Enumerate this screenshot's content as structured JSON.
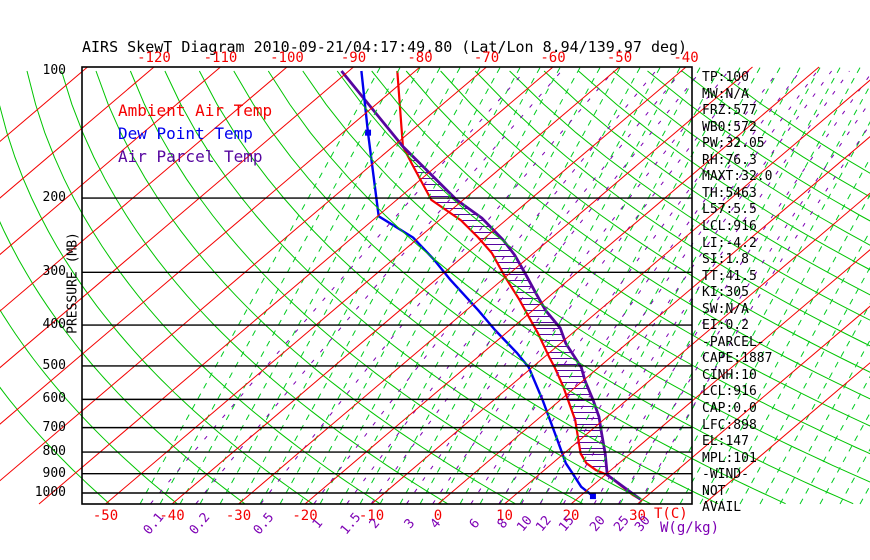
{
  "chart_data": {
    "type": "skewt",
    "title": "AIRS SkewT Diagram 2010-09-21/04:17:49.80 (Lat/Lon 8.94/139.97 deg)",
    "legend": [
      {
        "label": "Ambient Air Temp",
        "color": "#f40000"
      },
      {
        "label": "Dew Point Temp",
        "color": "#0000ee"
      },
      {
        "label": "Air Parcel Temp",
        "color": "#56069f"
      }
    ],
    "axes": {
      "pressure": {
        "label": "PRESSURE (MB)",
        "ticks": [
          100,
          200,
          300,
          400,
          500,
          600,
          700,
          800,
          900,
          1000
        ]
      },
      "temp_top": {
        "ticks": [
          -120,
          -110,
          -100,
          -90,
          -80,
          -70,
          -60,
          -50,
          -40
        ]
      },
      "temp_bottom": {
        "label": "T(C)",
        "ticks": [
          -50,
          -40,
          -30,
          -20,
          -10,
          0,
          10,
          20,
          30
        ]
      },
      "mixing_ratio": {
        "label": "W(g/kg)",
        "ticks": [
          0.1,
          0.2,
          0.5,
          1,
          1.5,
          2,
          3,
          4,
          6,
          8,
          10,
          12,
          15,
          20,
          25,
          30
        ]
      }
    },
    "grid": {
      "isotherm_step_c": 10,
      "isotherm_range_c": [
        -130,
        40
      ],
      "dry_adiabat_theta_k": {
        "min": 220,
        "max": 460,
        "step": 10
      }
    },
    "profiles": {
      "ambient_air_temp": [
        [
          100,
          -82.7
        ],
        [
          151,
          -68.5
        ],
        [
          167,
          -63.8
        ],
        [
          202,
          -54.8
        ],
        [
          226,
          -46.7
        ],
        [
          248,
          -41.1
        ],
        [
          270,
          -36.3
        ],
        [
          308,
          -30.0
        ],
        [
          349,
          -23.8
        ],
        [
          396,
          -17.8
        ],
        [
          418,
          -15.2
        ],
        [
          477,
          -9.2
        ],
        [
          504,
          -6.6
        ],
        [
          560,
          -1.9
        ],
        [
          672,
          5.8
        ],
        [
          806,
          12.5
        ],
        [
          850,
          15.1
        ],
        [
          883,
          17.8
        ],
        [
          906,
          20.3
        ],
        [
          1012,
          27.8
        ],
        [
          1035,
          29.6
        ]
      ],
      "dew_point_temp": [
        [
          100,
          -88.1
        ],
        [
          140,
          -76.2
        ],
        [
          221,
          -59.8
        ],
        [
          248,
          -50.9
        ],
        [
          280,
          -43.8
        ],
        [
          313,
          -37.7
        ],
        [
          369,
          -28.2
        ],
        [
          411,
          -22.2
        ],
        [
          466,
          -14.8
        ],
        [
          504,
          -10.5
        ],
        [
          603,
          -2.6
        ],
        [
          750,
          6.7
        ],
        [
          850,
          12.0
        ],
        [
          898,
          14.8
        ],
        [
          967,
          18.5
        ],
        [
          1017,
          21.9
        ]
      ],
      "air_parcel_temp": [
        [
          100,
          -91.1
        ],
        [
          151,
          -68.5
        ],
        [
          202,
          -51.0
        ],
        [
          223,
          -44.0
        ],
        [
          251,
          -37.0
        ],
        [
          273,
          -32.5
        ],
        [
          301,
          -27.8
        ],
        [
          336,
          -22.6
        ],
        [
          369,
          -18.1
        ],
        [
          407,
          -12.7
        ],
        [
          442,
          -9.2
        ],
        [
          504,
          -2.6
        ],
        [
          542,
          0.3
        ],
        [
          603,
          5.0
        ],
        [
          660,
          8.8
        ],
        [
          722,
          12.1
        ],
        [
          806,
          16.2
        ],
        [
          883,
          19.4
        ],
        [
          906,
          20.3
        ],
        [
          1035,
          29.6
        ]
      ]
    },
    "cape_hatch_between_mb": [
      151,
      891
    ],
    "dewpoint_markers_mb": [
      140,
      1017
    ],
    "stats": [
      "TP:100",
      "MW:N/A",
      "FRZ:577",
      "WB0:572",
      "PW:32.05",
      "RH:76.3",
      "MAXT:32.0",
      "TH:5463",
      "L57:5.5",
      "LCL:916",
      "LI:-4.2",
      "SI:1.8",
      "TT:41.5",
      "KI:305",
      "SW:N/A",
      "EI:0.2",
      "-PARCEL-",
      "CAPE:1887",
      "CINH:10",
      "LCL:916",
      "CAP:0.0",
      "LFC:898",
      "EL:147",
      "MPL:101",
      "-WIND-",
      "NOT",
      "AVAIL"
    ],
    "colors": {
      "isotherm": "#f40000",
      "dry_adiabat": "#00c400",
      "moist_adiabat_dashed": "#00cc22",
      "mixing_ratio": "#7d00b4",
      "pressure_line": "#000000",
      "frame": "#000000",
      "ambient": "#f40000",
      "dewpoint": "#0000ee",
      "parcel": "#56069f",
      "hatch": "#56069f"
    }
  }
}
